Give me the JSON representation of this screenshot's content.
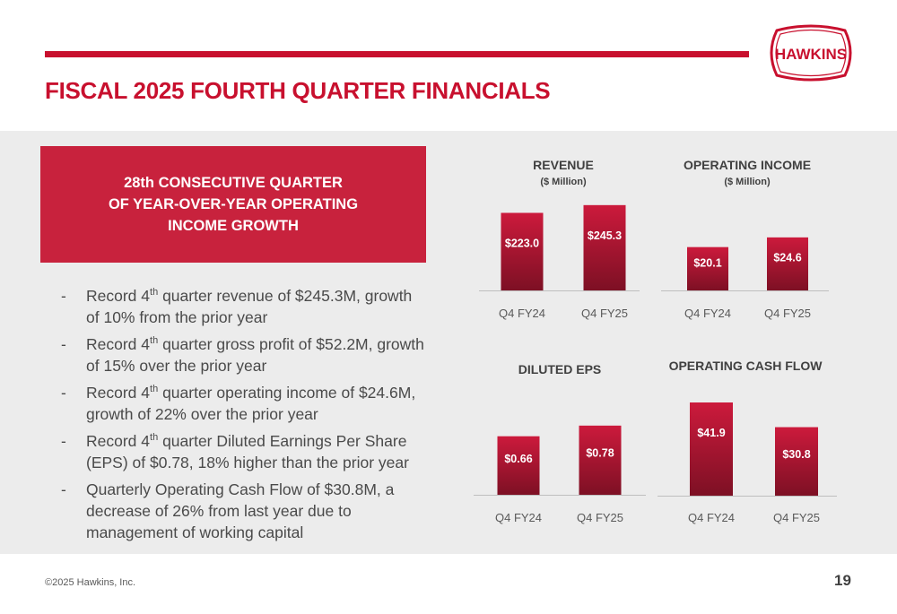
{
  "brand": {
    "logo_text": "HAWKINS",
    "accent_color": "#c8102e",
    "bar_color_top": "#cc1a3c",
    "bar_color_bottom": "#7d1024"
  },
  "title": "FISCAL 2025 FOURTH QUARTER FINANCIALS",
  "highlight": {
    "lines": [
      "28th CONSECUTIVE QUARTER",
      "OF YEAR-OVER-YEAR OPERATING",
      "INCOME GROWTH"
    ]
  },
  "bullets": [
    {
      "dash": "-",
      "pre": "Record 4",
      "sup": "th",
      "post": " quarter revenue of $245.3M, growth of 10% from the prior year"
    },
    {
      "dash": "-",
      "pre": "Record 4",
      "sup": "th",
      "post": " quarter gross profit of $52.2M, growth of 15% over the prior year"
    },
    {
      "dash": "-",
      "pre": "Record 4",
      "sup": "th",
      "post": " quarter operating income of $24.6M, growth of 22% over the prior year"
    },
    {
      "dash": "-",
      "pre": "Record 4",
      "sup": "th",
      "post": " quarter Diluted Earnings Per Share (EPS) of $0.78, 18% higher than the prior year"
    },
    {
      "dash": "-",
      "pre": "Quarterly Operating Cash Flow of $30.8M, a decrease of 26% from last year due to management of working capital",
      "sup": "",
      "post": ""
    }
  ],
  "chart_data": [
    {
      "type": "bar",
      "title": "REVENUE",
      "subtitle": "($ Million)",
      "categories": [
        "Q4 FY24",
        "Q4 FY25"
      ],
      "values": [
        223.0,
        245.3
      ],
      "labels": [
        "$223.0",
        "$245.3"
      ],
      "ylim": [
        0,
        250
      ],
      "grid": false
    },
    {
      "type": "bar",
      "title": "OPERATING INCOME",
      "subtitle": "($ Million)",
      "categories": [
        "Q4 FY24",
        "Q4 FY25"
      ],
      "values": [
        20.1,
        24.6
      ],
      "labels": [
        "$20.1",
        "$24.6"
      ],
      "ylim": [
        0,
        42
      ],
      "grid": false
    },
    {
      "type": "bar",
      "title": "DILUTED EPS",
      "subtitle": "",
      "categories": [
        "Q4 FY24",
        "Q4 FY25"
      ],
      "values": [
        0.66,
        0.78
      ],
      "labels": [
        "$0.66",
        "$0.78"
      ],
      "ylim": [
        0,
        0.95
      ],
      "grid": false
    },
    {
      "type": "bar",
      "title": "OPERATING CASH FLOW",
      "subtitle": "",
      "categories": [
        "Q4 FY24",
        "Q4 FY25"
      ],
      "values": [
        41.9,
        30.8
      ],
      "labels": [
        "$41.9",
        "$30.8"
      ],
      "ylim": [
        0,
        41.9
      ],
      "grid": false
    }
  ],
  "footer": {
    "copyright": "©2025 Hawkins, Inc.",
    "page_number": "19"
  }
}
